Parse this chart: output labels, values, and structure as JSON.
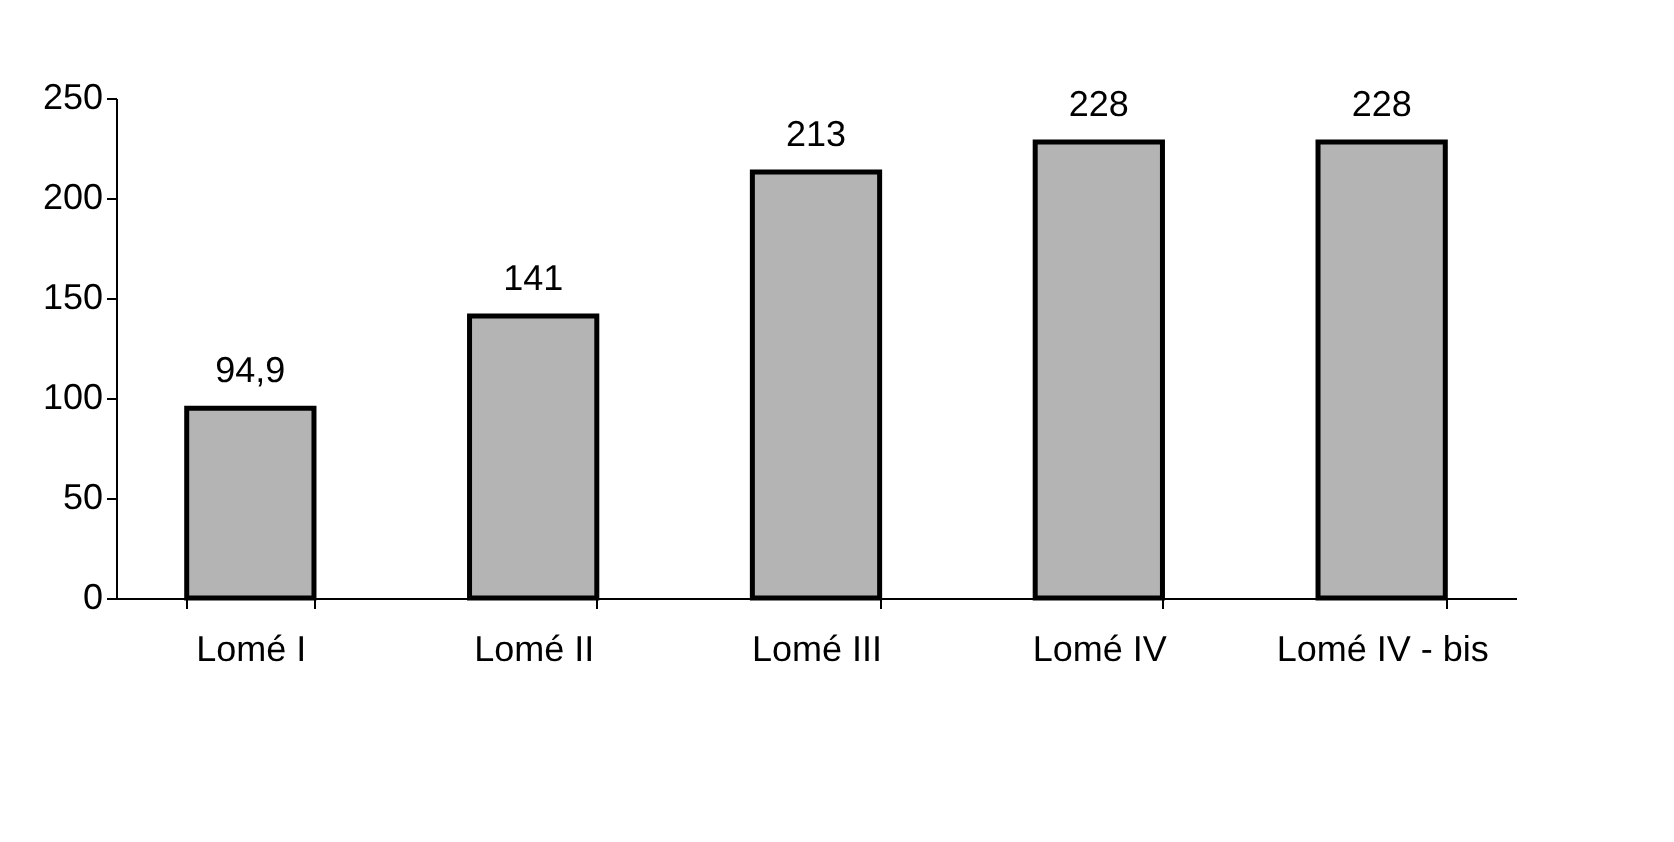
{
  "chart_data": {
    "type": "bar",
    "categories": [
      "Lomé I",
      "Lomé II",
      "Lomé III",
      "Lomé IV",
      "Lomé IV - bis"
    ],
    "values": [
      94.9,
      141,
      213,
      228,
      228
    ],
    "value_labels": [
      "94,9",
      "141",
      "213",
      "228",
      "228"
    ],
    "color": "#b4b4b4",
    "ylim": [
      0,
      250
    ],
    "yticks": [
      0,
      50,
      100,
      150,
      200,
      250
    ],
    "grid": false
  }
}
